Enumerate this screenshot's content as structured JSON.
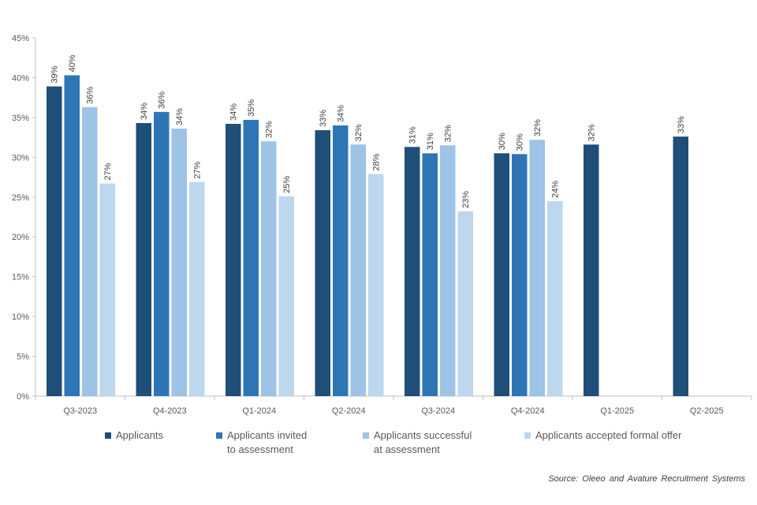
{
  "chart_data": {
    "type": "bar",
    "categories": [
      "Q3-2023",
      "Q4-2023",
      "Q1-2024",
      "Q2-2024",
      "Q3-2024",
      "Q4-2024",
      "Q1-2025",
      "Q2-2025"
    ],
    "series": [
      {
        "name": "Applicants",
        "color": "#1F4E79",
        "values": [
          39,
          34,
          34,
          33,
          31,
          30,
          32,
          33
        ],
        "raw": [
          38.9,
          34.3,
          34.2,
          33.4,
          31.3,
          30.5,
          31.6,
          32.6
        ]
      },
      {
        "name": "Applicants invited to assessment",
        "color": "#2E75B6",
        "values": [
          40,
          36,
          35,
          34,
          31,
          30,
          null,
          null
        ],
        "raw": [
          40.3,
          35.7,
          34.7,
          34.0,
          30.5,
          30.4,
          null,
          null
        ]
      },
      {
        "name": "Applicants successful at assessment",
        "color": "#9DC3E6",
        "values": [
          36,
          34,
          32,
          32,
          32,
          32,
          null,
          null
        ],
        "raw": [
          36.3,
          33.6,
          32.0,
          31.6,
          31.5,
          32.2,
          null,
          null
        ]
      },
      {
        "name": "Applicants accepted formal offer",
        "color": "#BDD7EE",
        "values": [
          27,
          27,
          25,
          28,
          23,
          24,
          null,
          null
        ],
        "raw": [
          26.7,
          26.9,
          25.1,
          27.9,
          23.2,
          24.5,
          null,
          null
        ]
      }
    ],
    "legend_lines": [
      [
        "Applicants"
      ],
      [
        "Applicants invited",
        "to assessment"
      ],
      [
        "Applicants successful",
        "at assessment"
      ],
      [
        "Applicants accepted formal offer"
      ]
    ],
    "yticks": [
      "0%",
      "5%",
      "10%",
      "15%",
      "20%",
      "25%",
      "30%",
      "35%",
      "40%",
      "45%"
    ],
    "ylim": [
      0,
      45
    ],
    "unit": "%",
    "legend_position": "bottom",
    "grid": false
  },
  "source": "Source:  Oleeo and Avature Recruitment  Systems"
}
